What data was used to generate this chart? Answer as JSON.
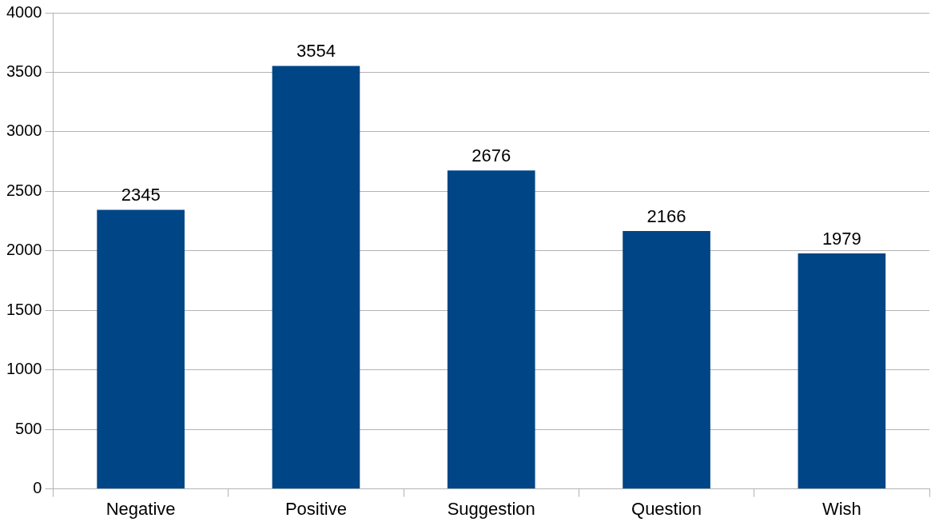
{
  "chart_data": {
    "type": "bar",
    "categories": [
      "Negative",
      "Positive",
      "Suggestion",
      "Question",
      "Wish"
    ],
    "values": [
      2345,
      3554,
      2676,
      2166,
      1979
    ],
    "color": "#004586",
    "ylim": [
      0,
      4000
    ],
    "yticks": [
      0,
      500,
      1000,
      1500,
      2000,
      2500,
      3000,
      3500,
      4000
    ],
    "grid": "y",
    "data_labels": true,
    "legend": false
  }
}
